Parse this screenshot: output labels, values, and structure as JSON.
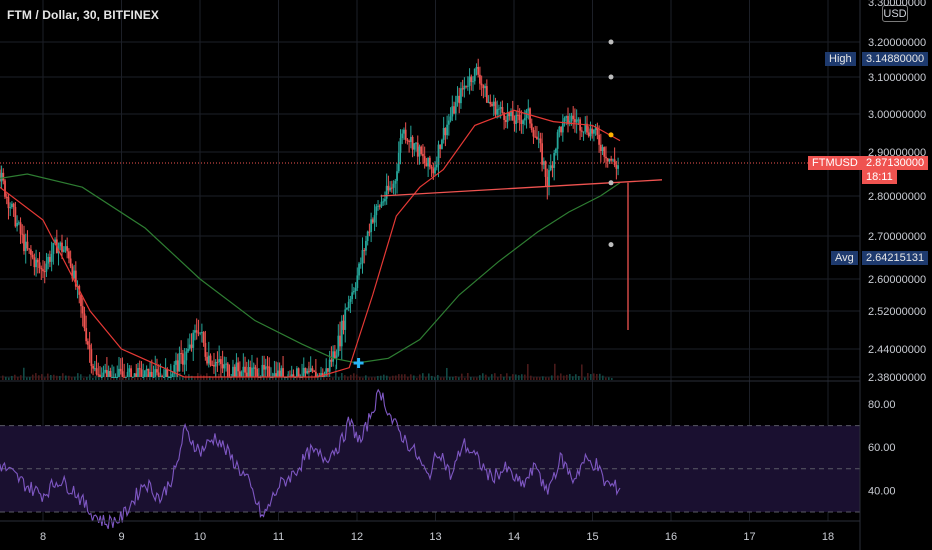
{
  "header": {
    "title": "FTM / Dollar, 30, BITFINEX",
    "currency_button": "USD"
  },
  "price_axis": {
    "ticks": [
      "3.20000000",
      "3.10000000",
      "3.00000000",
      "2.90000000",
      "2.80000000",
      "2.70000000",
      "2.60000000",
      "2.52000000",
      "2.44000000",
      "2.38000000"
    ],
    "top_tick_partial": "3.30000000"
  },
  "markers": {
    "high": {
      "label": "High",
      "value": "3.14880000"
    },
    "current": {
      "label": "FTMUSD",
      "value": "2.87130000",
      "countdown": "18:11"
    },
    "avg": {
      "label": "Avg",
      "value": "2.64215131"
    }
  },
  "rsi_axis": {
    "ticks": [
      "80.00",
      "60.00",
      "40.00"
    ]
  },
  "time_axis": {
    "ticks": [
      "8",
      "9",
      "10",
      "11",
      "12",
      "13",
      "14",
      "15",
      "16",
      "17",
      "18"
    ]
  },
  "colors": {
    "background": "#000000",
    "up_candle": "#26a69a",
    "down_candle": "#ef5350",
    "ma_fast": "#e53935",
    "ma_slow": "#2e7d32",
    "rsi_line": "#7e57c2",
    "rsi_band": "#1a1030",
    "label_blue": "#1e3a6e",
    "label_red": "#ef5350"
  },
  "chart_data": {
    "type": "candlestick",
    "price_range": [
      2.38,
      3.3
    ],
    "rsi_range": [
      25,
      88
    ],
    "x_days": [
      8,
      9,
      10,
      11,
      12,
      13,
      14,
      15,
      16,
      17,
      18
    ],
    "price_path": [
      [
        7.45,
        2.86
      ],
      [
        7.6,
        2.78
      ],
      [
        7.8,
        2.67
      ],
      [
        8.0,
        2.62
      ],
      [
        8.2,
        2.68
      ],
      [
        8.35,
        2.66
      ],
      [
        8.5,
        2.53
      ],
      [
        8.6,
        2.45
      ],
      [
        8.7,
        2.38
      ],
      [
        9.0,
        2.38
      ],
      [
        9.6,
        2.38
      ],
      [
        9.9,
        2.44
      ],
      [
        10.0,
        2.49
      ],
      [
        10.1,
        2.43
      ],
      [
        10.3,
        2.4
      ],
      [
        10.6,
        2.39
      ],
      [
        11.2,
        2.38
      ],
      [
        11.6,
        2.38
      ],
      [
        11.8,
        2.46
      ],
      [
        11.9,
        2.54
      ],
      [
        12.0,
        2.59
      ],
      [
        12.1,
        2.66
      ],
      [
        12.2,
        2.74
      ],
      [
        12.35,
        2.79
      ],
      [
        12.5,
        2.83
      ],
      [
        12.6,
        2.96
      ],
      [
        12.75,
        2.92
      ],
      [
        12.9,
        2.87
      ],
      [
        13.0,
        2.86
      ],
      [
        13.1,
        2.94
      ],
      [
        13.25,
        3.01
      ],
      [
        13.4,
        3.08
      ],
      [
        13.55,
        3.12
      ],
      [
        13.7,
        3.03
      ],
      [
        13.9,
        3.0
      ],
      [
        14.05,
        2.98
      ],
      [
        14.2,
        3.0
      ],
      [
        14.35,
        2.91
      ],
      [
        14.45,
        2.83
      ],
      [
        14.6,
        2.96
      ],
      [
        14.75,
        2.99
      ],
      [
        14.9,
        2.97
      ],
      [
        15.05,
        2.95
      ],
      [
        15.15,
        2.91
      ],
      [
        15.3,
        2.87
      ]
    ],
    "ma_fast_path": [
      [
        7.45,
        2.82
      ],
      [
        8.0,
        2.74
      ],
      [
        8.6,
        2.52
      ],
      [
        9.0,
        2.44
      ],
      [
        9.8,
        2.38
      ],
      [
        10.5,
        2.38
      ],
      [
        11.5,
        2.38
      ],
      [
        11.9,
        2.4
      ],
      [
        12.2,
        2.56
      ],
      [
        12.5,
        2.75
      ],
      [
        12.8,
        2.82
      ],
      [
        13.1,
        2.86
      ],
      [
        13.5,
        2.97
      ],
      [
        14.0,
        3.01
      ],
      [
        14.5,
        2.98
      ],
      [
        15.0,
        2.97
      ],
      [
        15.35,
        2.93
      ]
    ],
    "ma_slow_path": [
      [
        7.45,
        2.84
      ],
      [
        7.8,
        2.85
      ],
      [
        8.5,
        2.82
      ],
      [
        9.3,
        2.72
      ],
      [
        10.0,
        2.6
      ],
      [
        10.7,
        2.5
      ],
      [
        11.3,
        2.45
      ],
      [
        11.7,
        2.42
      ],
      [
        12.0,
        2.41
      ],
      [
        12.4,
        2.42
      ],
      [
        12.8,
        2.46
      ],
      [
        13.3,
        2.56
      ],
      [
        13.8,
        2.64
      ],
      [
        14.3,
        2.71
      ],
      [
        14.7,
        2.76
      ],
      [
        15.1,
        2.8
      ],
      [
        15.35,
        2.83
      ]
    ],
    "rsi_path": [
      [
        7.45,
        52
      ],
      [
        7.6,
        48
      ],
      [
        7.8,
        42
      ],
      [
        8.0,
        38
      ],
      [
        8.2,
        45
      ],
      [
        8.4,
        40
      ],
      [
        8.6,
        30
      ],
      [
        8.8,
        25
      ],
      [
        9.0,
        27
      ],
      [
        9.3,
        44
      ],
      [
        9.5,
        36
      ],
      [
        9.7,
        50
      ],
      [
        9.8,
        68
      ],
      [
        10.0,
        58
      ],
      [
        10.2,
        65
      ],
      [
        10.4,
        55
      ],
      [
        10.6,
        45
      ],
      [
        10.8,
        27
      ],
      [
        11.0,
        42
      ],
      [
        11.2,
        48
      ],
      [
        11.4,
        58
      ],
      [
        11.6,
        55
      ],
      [
        11.8,
        62
      ],
      [
        11.9,
        72
      ],
      [
        12.05,
        62
      ],
      [
        12.2,
        78
      ],
      [
        12.3,
        86
      ],
      [
        12.45,
        72
      ],
      [
        12.6,
        64
      ],
      [
        12.75,
        57
      ],
      [
        12.9,
        46
      ],
      [
        13.05,
        59
      ],
      [
        13.2,
        46
      ],
      [
        13.35,
        62
      ],
      [
        13.5,
        56
      ],
      [
        13.7,
        46
      ],
      [
        13.9,
        50
      ],
      [
        14.1,
        42
      ],
      [
        14.3,
        52
      ],
      [
        14.4,
        38
      ],
      [
        14.6,
        55
      ],
      [
        14.75,
        45
      ],
      [
        14.9,
        54
      ],
      [
        15.05,
        52
      ],
      [
        15.15,
        44
      ],
      [
        15.25,
        42
      ],
      [
        15.35,
        41
      ]
    ],
    "neckline": [
      [
        12.3,
        2.8
      ],
      [
        15.6,
        2.83
      ]
    ],
    "target_drop": [
      [
        15.45,
        2.83
      ],
      [
        15.45,
        2.48
      ]
    ],
    "projection_dots": [
      [
        15.3,
        3.2
      ],
      [
        15.3,
        3.1
      ],
      [
        15.3,
        2.945
      ],
      [
        15.3,
        2.83
      ],
      [
        15.3,
        2.68
      ]
    ],
    "plus_marker": [
      12.02,
      2.41
    ]
  }
}
